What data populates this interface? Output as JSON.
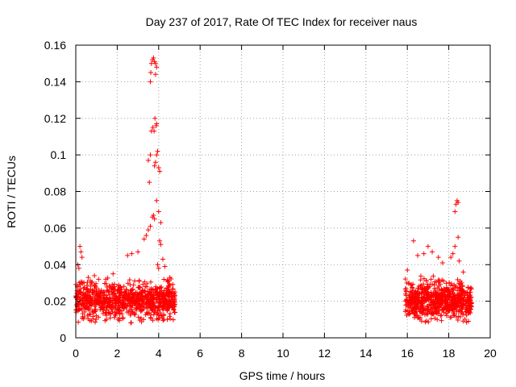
{
  "chart_data": {
    "type": "scatter",
    "title": "Day 237 of 2017, Rate Of TEC Index for receiver naus",
    "xlabel": "GPS time / hours",
    "ylabel": "ROTI / TECUs",
    "xlim": [
      0,
      20
    ],
    "ylim": [
      0,
      0.16
    ],
    "x_ticks": [
      0,
      2,
      4,
      6,
      8,
      10,
      12,
      14,
      16,
      18,
      20
    ],
    "y_ticks": [
      0,
      0.02,
      0.04,
      0.06,
      0.08,
      0.1,
      0.12,
      0.14,
      0.16
    ],
    "x_tick_labels": [
      "0",
      "2",
      "4",
      "6",
      "8",
      "10",
      "12",
      "14",
      "16",
      "18",
      "20"
    ],
    "y_tick_labels": [
      "0",
      "0.02",
      "0.04",
      "0.06",
      "0.08",
      "0.1",
      "0.12",
      "0.14",
      "0.16"
    ],
    "grid": true,
    "marker": "+",
    "series": [
      {
        "name": "naus",
        "color": "#ff0000",
        "clusters": [
          {
            "x_range": [
              0.0,
              4.8
            ],
            "y_range": [
              0.006,
              0.035
            ],
            "count": 900
          },
          {
            "x_range": [
              15.9,
              19.1
            ],
            "y_range": [
              0.006,
              0.035
            ],
            "count": 700
          }
        ],
        "points": [
          [
            0.1,
            0.04
          ],
          [
            0.2,
            0.05
          ],
          [
            0.25,
            0.047
          ],
          [
            0.3,
            0.044
          ],
          [
            0.15,
            0.038
          ],
          [
            0.6,
            0.033
          ],
          [
            0.9,
            0.034
          ],
          [
            1.1,
            0.032
          ],
          [
            1.8,
            0.035
          ],
          [
            2.5,
            0.045
          ],
          [
            2.7,
            0.046
          ],
          [
            3.0,
            0.047
          ],
          [
            3.3,
            0.054
          ],
          [
            3.4,
            0.056
          ],
          [
            3.5,
            0.059
          ],
          [
            3.6,
            0.061
          ],
          [
            3.5,
            0.097
          ],
          [
            3.55,
            0.085
          ],
          [
            3.6,
            0.1
          ],
          [
            3.65,
            0.113
          ],
          [
            3.6,
            0.14
          ],
          [
            3.62,
            0.145
          ],
          [
            3.65,
            0.15
          ],
          [
            3.7,
            0.152
          ],
          [
            3.75,
            0.153
          ],
          [
            3.8,
            0.151
          ],
          [
            3.85,
            0.15
          ],
          [
            3.9,
            0.148
          ],
          [
            3.85,
            0.144
          ],
          [
            3.82,
            0.12
          ],
          [
            3.88,
            0.116
          ],
          [
            3.9,
            0.117
          ],
          [
            3.72,
            0.115
          ],
          [
            3.78,
            0.113
          ],
          [
            3.8,
            0.094
          ],
          [
            3.85,
            0.096
          ],
          [
            3.9,
            0.1
          ],
          [
            3.95,
            0.102
          ],
          [
            4.0,
            0.093
          ],
          [
            4.05,
            0.091
          ],
          [
            3.7,
            0.066
          ],
          [
            3.75,
            0.067
          ],
          [
            3.8,
            0.065
          ],
          [
            3.9,
            0.075
          ],
          [
            4.0,
            0.069
          ],
          [
            4.1,
            0.063
          ],
          [
            4.05,
            0.053
          ],
          [
            4.1,
            0.051
          ],
          [
            3.95,
            0.04
          ],
          [
            4.0,
            0.038
          ],
          [
            4.2,
            0.043
          ],
          [
            4.3,
            0.039
          ],
          [
            16.0,
            0.037
          ],
          [
            16.3,
            0.053
          ],
          [
            16.5,
            0.045
          ],
          [
            16.8,
            0.046
          ],
          [
            17.0,
            0.05
          ],
          [
            17.2,
            0.047
          ],
          [
            17.5,
            0.044
          ],
          [
            17.7,
            0.041
          ],
          [
            18.1,
            0.044
          ],
          [
            18.2,
            0.046
          ],
          [
            18.3,
            0.05
          ],
          [
            18.45,
            0.055
          ],
          [
            18.3,
            0.069
          ],
          [
            18.35,
            0.073
          ],
          [
            18.4,
            0.075
          ],
          [
            18.45,
            0.074
          ],
          [
            18.5,
            0.042
          ],
          [
            18.7,
            0.036
          ]
        ]
      }
    ]
  }
}
